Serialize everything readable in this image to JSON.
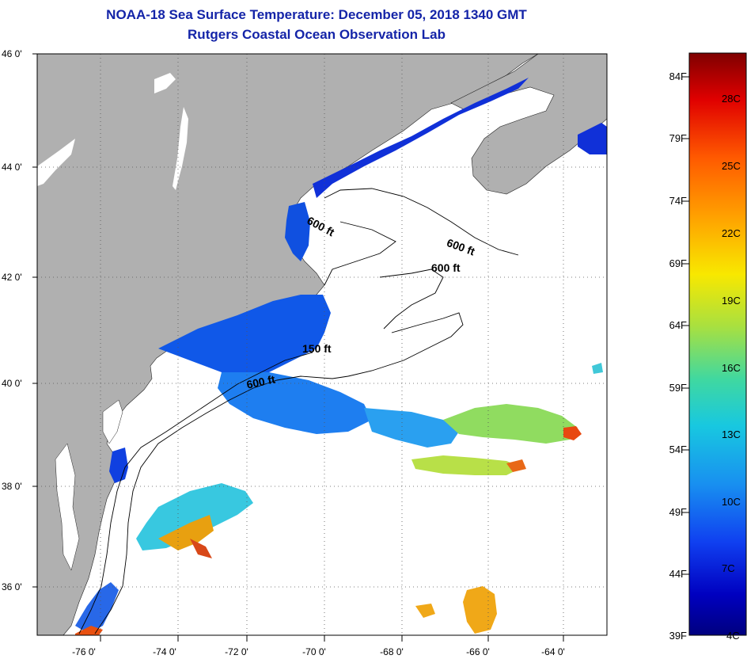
{
  "header": {
    "title": "NOAA-18 Sea Surface Temperature:  December 05, 2018 1340 GMT",
    "subtitle": "Rutgers Coastal Ocean Observation Lab"
  },
  "map": {
    "lat_ticks": [
      "46 0'",
      "44 0'",
      "42 0'",
      "40 0'",
      "38 0'",
      "36 0'"
    ],
    "lon_ticks": [
      "-76 0'",
      "-74 0'",
      "-72 0'",
      "-70 0'",
      "-68 0'",
      "-66 0'",
      "-64 0'"
    ],
    "contour_labels": [
      "600 ft",
      "600 ft",
      "600 ft",
      "150 ft",
      "600 ft"
    ],
    "colors": {
      "land": "#b0b0b0",
      "water_nodata": "#ffffff",
      "grid": "#555555"
    }
  },
  "colorbar": {
    "fahrenheit_labels": [
      "84F",
      "79F",
      "74F",
      "69F",
      "64F",
      "59F",
      "54F",
      "49F",
      "44F",
      "39F"
    ],
    "celsius_labels": [
      "28C",
      "25C",
      "22C",
      "19C",
      "16C",
      "13C",
      "10C",
      "7C",
      "4C"
    ],
    "scale_colors": [
      "#7f0000",
      "#e00000",
      "#ff5a00",
      "#ffa000",
      "#f8e800",
      "#a8e040",
      "#40d8a0",
      "#18c8e0",
      "#1890f0",
      "#1040f0",
      "#0000c0",
      "#00007f"
    ]
  }
}
